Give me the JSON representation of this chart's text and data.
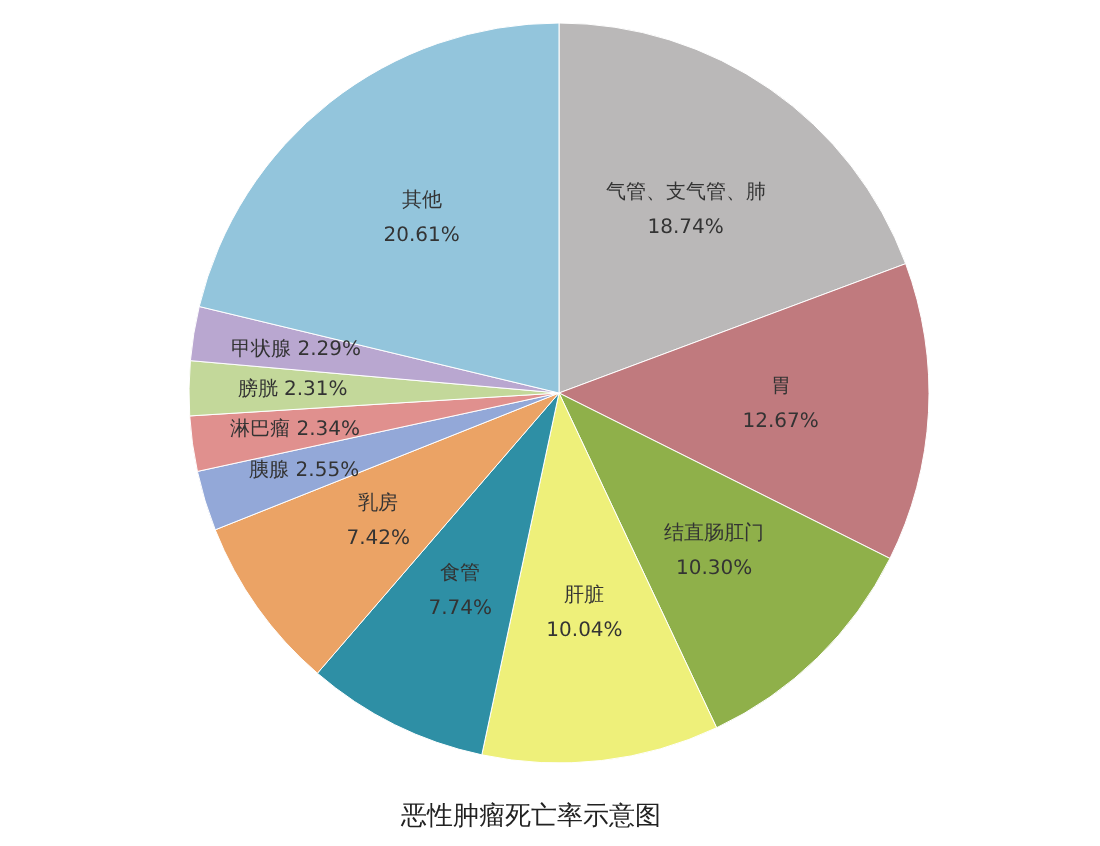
{
  "chart_data": {
    "type": "pie",
    "title": "恶性肿瘤死亡率示意图",
    "categories": [
      "气管、支气管、肺",
      "胃",
      "结直肠肛门",
      "肝脏",
      "食管",
      "乳房",
      "胰腺",
      "淋巴瘤",
      "膀胱",
      "甲状腺",
      "其他"
    ],
    "values": [
      18.74,
      12.67,
      10.3,
      10.04,
      7.74,
      7.42,
      2.55,
      2.34,
      2.31,
      2.29,
      20.61
    ],
    "value_labels": [
      "18.74%",
      "12.67%",
      "10.30%",
      "10.04%",
      "7.74%",
      "7.42%",
      "2.55%",
      "2.34%",
      "2.31%",
      "2.29%",
      "20.61%"
    ],
    "colors": [
      "#bab8b8",
      "#c07a7e",
      "#8fb04a",
      "#eef07a",
      "#2e8fa5",
      "#eba365",
      "#93a8d8",
      "#e0908e",
      "#c3d89a",
      "#b9a7d0",
      "#93c5dc"
    ]
  }
}
